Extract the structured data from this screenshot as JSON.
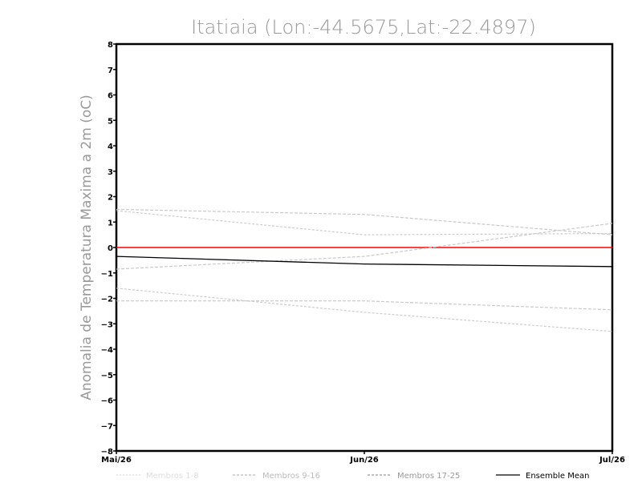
{
  "chart_data": {
    "type": "line",
    "title": "Itatiaia (Lon:-44.5675,Lat:-22.4897)",
    "ylabel": "Anomalia de Temperatura Maxima a 2m (oC)",
    "xlabel": "",
    "categories": [
      "Mai/26",
      "Jun/26",
      "Jul/26"
    ],
    "ylim": [
      -8,
      8
    ],
    "yticks": [
      "8",
      "7",
      "6",
      "5",
      "4",
      "3",
      "2",
      "1",
      "0",
      "-1",
      "-2",
      "-3",
      "-4",
      "-5",
      "-6",
      "-7",
      "-8"
    ],
    "reference_line": {
      "y": 0,
      "color": "#ff0000"
    },
    "grid": false,
    "legend_position": "bottom",
    "series": [
      {
        "name": "Membros 1-8",
        "group": "m1",
        "values": [
          1.45,
          0.5,
          0.55
        ]
      },
      {
        "name": "",
        "group": "m1",
        "values": [
          -1.6,
          -2.55,
          -3.3
        ]
      },
      {
        "name": "Membros 9-16",
        "group": "m2",
        "values": [
          1.5,
          1.3,
          0.5
        ]
      },
      {
        "name": "",
        "group": "m2",
        "values": [
          -0.85,
          -0.35,
          0.95
        ]
      },
      {
        "name": "",
        "group": "m2",
        "values": [
          -2.1,
          -2.1,
          -2.45
        ]
      },
      {
        "name": "Ensemble Mean",
        "group": "mean",
        "values": [
          -0.35,
          -0.65,
          -0.75
        ]
      }
    ],
    "legend": [
      {
        "label": "Membros 1-8",
        "color": "#dddddd",
        "dash": "dotted"
      },
      {
        "label": "Membros 9-16",
        "color": "#bbbbbb",
        "dash": "dashed"
      },
      {
        "label": "Membros 17-25",
        "color": "#999999",
        "dash": "dashed"
      },
      {
        "label": "Ensemble Mean",
        "color": "#000000",
        "dash": "solid"
      }
    ],
    "colors": {
      "m1": "#cccccc",
      "m2": "#c8c8c8",
      "mean": "#000000",
      "title": "#999999",
      "zero": "#ff0000"
    }
  }
}
